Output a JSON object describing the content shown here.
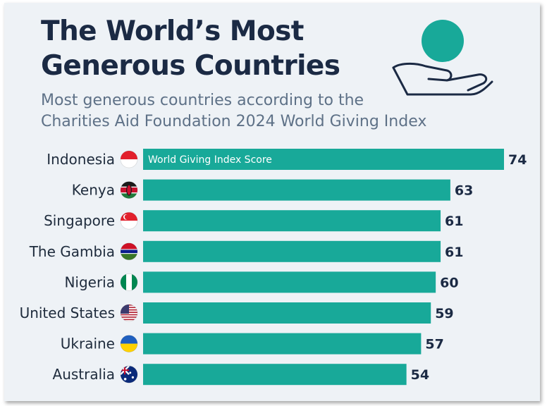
{
  "title_line1": "The World’s Most",
  "title_line2": "Generous Countries",
  "subtitle_line1": "Most generous countries according to the",
  "subtitle_line2": "Charities Aid Foundation 2024 World Giving Index",
  "colors": {
    "bar": "#18a999",
    "title": "#1b2a44",
    "subtitle": "#5e7187",
    "background": "#eef2f6"
  },
  "chart_data": {
    "type": "bar",
    "orientation": "horizontal",
    "title": "The World’s Most Generous Countries",
    "subtitle": "Most generous countries according to the Charities Aid Foundation 2024 World Giving Index",
    "series": [
      {
        "name": "World Giving Index Score",
        "values": [
          74,
          63,
          61,
          61,
          60,
          59,
          57,
          54
        ]
      }
    ],
    "categories": [
      "Indonesia",
      "Kenya",
      "Singapore",
      "The Gambia",
      "Nigeria",
      "United States",
      "Ukraine",
      "Australia"
    ],
    "flag_icons": [
      "indonesia-flag-icon",
      "kenya-flag-icon",
      "singapore-flag-icon",
      "gambia-flag-icon",
      "nigeria-flag-icon",
      "usa-flag-icon",
      "ukraine-flag-icon",
      "australia-flag-icon"
    ],
    "xlim": [
      0,
      74
    ],
    "grid": false,
    "legend": "inside-first-bar"
  }
}
